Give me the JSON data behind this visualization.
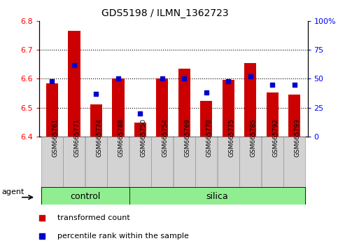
{
  "title": "GDS5198 / ILMN_1362723",
  "samples": [
    "GSM665761",
    "GSM665771",
    "GSM665774",
    "GSM665788",
    "GSM665750",
    "GSM665754",
    "GSM665769",
    "GSM665770",
    "GSM665775",
    "GSM665785",
    "GSM665792",
    "GSM665793"
  ],
  "groups": [
    "control",
    "control",
    "control",
    "control",
    "silica",
    "silica",
    "silica",
    "silica",
    "silica",
    "silica",
    "silica",
    "silica"
  ],
  "bar_values": [
    6.585,
    6.765,
    6.51,
    6.6,
    6.447,
    6.6,
    6.635,
    6.523,
    6.595,
    6.655,
    6.553,
    6.545
  ],
  "percentile_values": [
    48,
    62,
    37,
    50,
    20,
    50,
    50,
    38,
    48,
    52,
    45,
    45
  ],
  "ylim": [
    6.4,
    6.8
  ],
  "yticks_left": [
    6.4,
    6.5,
    6.6,
    6.7,
    6.8
  ],
  "yticks_right": [
    0,
    25,
    50,
    75,
    100
  ],
  "bar_color": "#cc0000",
  "marker_color": "#0000cc",
  "bar_width": 0.55,
  "legend_tc": "transformed count",
  "legend_pr": "percentile rank within the sample",
  "n_control": 4,
  "n_silica": 8
}
